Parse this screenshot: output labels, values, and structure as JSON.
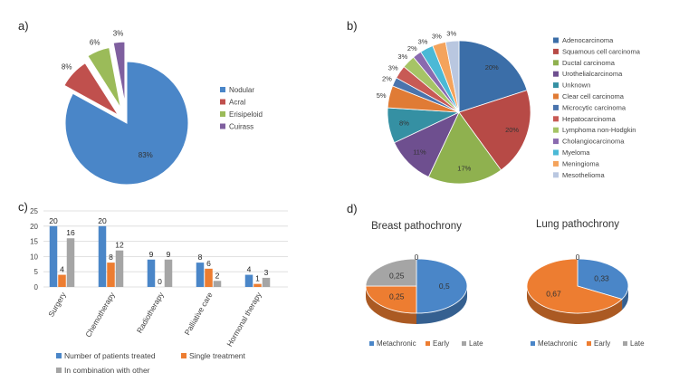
{
  "colors": {
    "blue": "#4a86c8",
    "red": "#c0504d",
    "green": "#9bbb59",
    "purple": "#7f5f9f",
    "teal": "#3f9fb2",
    "orange": "#ed7d31",
    "gray": "#a5a5a5",
    "navy": "#3b6ea8",
    "dred": "#b74a46",
    "olive": "#8fb14f",
    "dpurple": "#6e4f8f",
    "dteal": "#3590a3",
    "lblue": "#8faedc",
    "lred": "#d9868a",
    "lpurple": "#9d86bf",
    "lteal": "#4bb9d6",
    "lorange": "#f4a35c",
    "lgray": "#b9c7e0"
  },
  "panel_labels": {
    "a": "a)",
    "b": "b)",
    "c": "c)",
    "d": "d)"
  },
  "chart_data": [
    {
      "id": "a",
      "type": "pie",
      "title": "",
      "slices": [
        {
          "label": "Nodular",
          "value": 83,
          "text": "83%",
          "color": "#4a86c8"
        },
        {
          "label": "Acral",
          "value": 8,
          "text": "8%",
          "color": "#c0504d"
        },
        {
          "label": "Erisipeloid",
          "value": 6,
          "text": "6%",
          "color": "#9bbb59"
        },
        {
          "label": "Cuirass",
          "value": 3,
          "text": "3%",
          "color": "#7f5f9f"
        }
      ],
      "exploded": true,
      "legend": "right"
    },
    {
      "id": "b",
      "type": "pie",
      "title": "",
      "slices": [
        {
          "label": "Adenocarcinoma",
          "value": 20,
          "text": "20%",
          "color": "#3b6ea8"
        },
        {
          "label": "Squamous cell carcinoma",
          "value": 20,
          "text": "20%",
          "color": "#b74a46"
        },
        {
          "label": "Ductal carcinoma",
          "value": 17,
          "text": "17%",
          "color": "#8fb14f"
        },
        {
          "label": "Urothelialcarcinoma",
          "value": 11,
          "text": "11%",
          "color": "#6e4f8f"
        },
        {
          "label": "Unknown",
          "value": 8,
          "text": "8%",
          "color": "#3590a3"
        },
        {
          "label": "Clear cell carcinoma",
          "value": 5,
          "text": "5%",
          "color": "#e07b35"
        },
        {
          "label": "Microcytic carcinoma",
          "value": 2,
          "text": "2%",
          "color": "#4a74ad"
        },
        {
          "label": "Hepatocarcinoma",
          "value": 3,
          "text": "3%",
          "color": "#c85a55"
        },
        {
          "label": "Lymphoma non-Hodgkin",
          "value": 3,
          "text": "3%",
          "color": "#a6c466"
        },
        {
          "label": "Cholangiocarcinoma",
          "value": 2,
          "text": "2%",
          "color": "#8a6aaf"
        },
        {
          "label": "Myeloma",
          "value": 3,
          "text": "3%",
          "color": "#4bb9d6"
        },
        {
          "label": "Meningioma",
          "value": 3,
          "text": "3%",
          "color": "#f4a35c"
        },
        {
          "label": "Mesothelioma",
          "value": 3,
          "text": "3%",
          "color": "#b9c7e0"
        }
      ],
      "legend": "right"
    },
    {
      "id": "c",
      "type": "bar",
      "title": "",
      "categories": [
        "Surgery",
        "Chemotherapy",
        "Radiotherapy",
        "Palliative care",
        "Hormonal therapy"
      ],
      "series": [
        {
          "name": "Number of patients treated",
          "values": [
            20,
            20,
            9,
            8,
            4
          ],
          "color": "#4a86c8"
        },
        {
          "name": "Single treatment",
          "values": [
            4,
            8,
            0,
            6,
            1
          ],
          "color": "#ed7d31"
        },
        {
          "name": "In combination with other",
          "values": [
            16,
            12,
            9,
            2,
            3
          ],
          "color": "#a5a5a5"
        }
      ],
      "ylim": [
        0,
        25
      ],
      "yticks": [
        0,
        5,
        10,
        15,
        20,
        25
      ],
      "grid": true,
      "legend": "bottom"
    },
    {
      "id": "d1",
      "type": "pie",
      "title": "Breast pathochrony",
      "slices": [
        {
          "label": "Metachronic",
          "value": 0.5,
          "text": "0,5",
          "color": "#4a86c8"
        },
        {
          "label": "Early",
          "value": 0.25,
          "text": "0,25",
          "color": "#ed7d31"
        },
        {
          "label": "Late",
          "value": 0.25,
          "text": "0,25",
          "color": "#a5a5a5"
        }
      ],
      "zero_label": "0",
      "legend": "bottom"
    },
    {
      "id": "d2",
      "type": "pie",
      "title": "Lung pathochrony",
      "slices": [
        {
          "label": "Metachronic",
          "value": 0.33,
          "text": "0,33",
          "color": "#4a86c8"
        },
        {
          "label": "Early",
          "value": 0.67,
          "text": "0,67",
          "color": "#ed7d31"
        },
        {
          "label": "Late",
          "value": 0,
          "text": "0",
          "color": "#a5a5a5"
        }
      ],
      "legend": "bottom"
    }
  ]
}
